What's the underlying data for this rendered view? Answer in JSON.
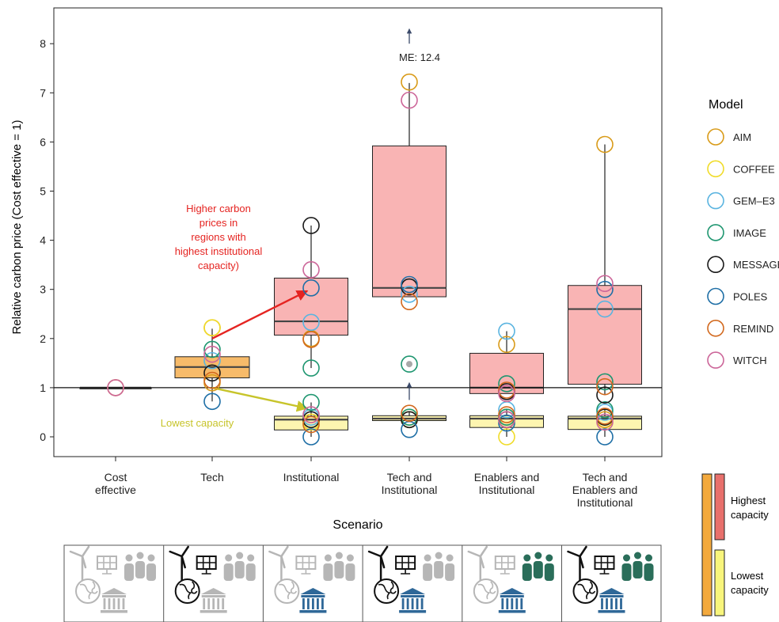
{
  "chart_data": {
    "type": "box",
    "ylabel": "Relative carbon price (Cost effective = 1)",
    "xlabel": "Scenario",
    "ylim": [
      -0.35,
      8.7
    ],
    "yticks": [
      0,
      1,
      2,
      3,
      4,
      5,
      6,
      7,
      8
    ],
    "reference_line": 1,
    "categories": [
      "Cost\neffective",
      "Tech",
      "Institutional",
      "Tech and\nInstitutional",
      "Enablers and\nInstitutional",
      "Tech and\nEnablers and\nInstitutional"
    ],
    "boxes": [
      {
        "category": 0,
        "group": "highest",
        "q1": 1.0,
        "median": 1.0,
        "q3": 1.0,
        "whisker_low": 1.0,
        "whisker_high": 1.0
      },
      {
        "category": 1,
        "group": "combined",
        "q1": 1.2,
        "median": 1.42,
        "q3": 1.63,
        "whisker_low": 0.72,
        "whisker_high": 2.2
      },
      {
        "category": 2,
        "group": "highest",
        "q1": 2.07,
        "median": 2.35,
        "q3": 3.23,
        "whisker_low": 1.4,
        "whisker_high": 4.3
      },
      {
        "category": 2,
        "group": "lowest",
        "q1": 0.14,
        "median": 0.35,
        "q3": 0.42,
        "whisker_low": 0.0,
        "whisker_high": 0.7
      },
      {
        "category": 3,
        "group": "highest",
        "q1": 2.85,
        "median": 3.03,
        "q3": 5.92,
        "whisker_low": 2.85,
        "whisker_high": 7.2
      },
      {
        "category": 3,
        "group": "lowest",
        "q1": 0.33,
        "median": 0.37,
        "q3": 0.43,
        "whisker_low": 0.3,
        "whisker_high": 0.5
      },
      {
        "category": 4,
        "group": "highest",
        "q1": 0.88,
        "median": 1.0,
        "q3": 1.7,
        "whisker_low": 0.88,
        "whisker_high": 2.15
      },
      {
        "category": 4,
        "group": "lowest",
        "q1": 0.19,
        "median": 0.37,
        "q3": 0.43,
        "whisker_low": 0.0,
        "whisker_high": 0.55
      },
      {
        "category": 5,
        "group": "highest",
        "q1": 1.07,
        "median": 2.6,
        "q3": 3.08,
        "whisker_low": 0.85,
        "whisker_high": 5.95
      },
      {
        "category": 5,
        "group": "lowest",
        "q1": 0.15,
        "median": 0.37,
        "q3": 0.42,
        "whisker_low": 0.0,
        "whisker_high": 0.55
      }
    ],
    "series": [
      {
        "name": "AIM",
        "color": "#d99b19",
        "points": [
          [
            0,
            1.0
          ],
          [
            1,
            2.22
          ],
          [
            1,
            1.1
          ],
          [
            2,
            2.0
          ],
          [
            2,
            0.3
          ],
          [
            3,
            7.22
          ],
          [
            3,
            0.35
          ],
          [
            4,
            1.88
          ],
          [
            4,
            0.4
          ],
          [
            5,
            5.95
          ],
          [
            5,
            0.35
          ]
        ]
      },
      {
        "name": "COFFEE",
        "color": "#f0dc2a",
        "points": [
          [
            1,
            2.22
          ],
          [
            2,
            0.3
          ],
          [
            3,
            0.4
          ],
          [
            4,
            0.0
          ],
          [
            5,
            0.4
          ]
        ]
      },
      {
        "name": "GEM–E3",
        "color": "#5ab4e0",
        "points": [
          [
            1,
            1.55
          ],
          [
            2,
            2.33
          ],
          [
            2,
            0.4
          ],
          [
            3,
            2.9
          ],
          [
            4,
            2.15
          ],
          [
            4,
            0.55
          ],
          [
            5,
            2.6
          ],
          [
            5,
            0.5
          ]
        ]
      },
      {
        "name": "IMAGE",
        "color": "#1e9670",
        "points": [
          [
            1,
            1.78
          ],
          [
            2,
            1.4
          ],
          [
            2,
            0.7
          ],
          [
            3,
            1.48
          ],
          [
            3,
            0.4
          ],
          [
            4,
            1.08
          ],
          [
            4,
            0.4
          ],
          [
            5,
            1.12
          ],
          [
            5,
            0.55
          ]
        ]
      },
      {
        "name": "MESSAGE",
        "color": "#1a1a1a",
        "points": [
          [
            1,
            1.3
          ],
          [
            2,
            4.3
          ],
          [
            2,
            0.35
          ],
          [
            3,
            3.05
          ],
          [
            3,
            0.35
          ],
          [
            4,
            0.92
          ],
          [
            4,
            0.35
          ],
          [
            5,
            0.85
          ],
          [
            5,
            0.4
          ]
        ]
      },
      {
        "name": "POLES",
        "color": "#1f6fa6",
        "points": [
          [
            1,
            0.72
          ],
          [
            2,
            3.03
          ],
          [
            2,
            0.0
          ],
          [
            3,
            3.1
          ],
          [
            3,
            0.15
          ],
          [
            4,
            0.28
          ],
          [
            5,
            3.0
          ],
          [
            5,
            0.0
          ]
        ]
      },
      {
        "name": "REMIND",
        "color": "#d2691e",
        "points": [
          [
            1,
            1.15
          ],
          [
            2,
            1.98
          ],
          [
            2,
            0.25
          ],
          [
            3,
            2.75
          ],
          [
            3,
            0.48
          ],
          [
            4,
            0.95
          ],
          [
            4,
            0.45
          ],
          [
            5,
            1.02
          ],
          [
            5,
            0.42
          ]
        ]
      },
      {
        "name": "WITCH",
        "color": "#cc6699",
        "points": [
          [
            0,
            1.0
          ],
          [
            1,
            1.68
          ],
          [
            2,
            3.4
          ],
          [
            2,
            0.45
          ],
          [
            3,
            6.85
          ],
          [
            4,
            0.88
          ],
          [
            4,
            0.35
          ],
          [
            5,
            3.12
          ],
          [
            5,
            0.3
          ]
        ]
      }
    ]
  },
  "legend": {
    "title": "Model",
    "entries": [
      "AIM",
      "COFFEE",
      "GEM–E3",
      "IMAGE",
      "MESSAGE",
      "POLES",
      "REMIND",
      "WITCH"
    ]
  },
  "annotations": {
    "higher": [
      "Higher carbon",
      "prices in",
      "regions with",
      "highest institutional",
      "capacity)"
    ],
    "lowest": "Lowest capacity",
    "me": "ME: 12.4"
  },
  "capacity_legend": {
    "highest": [
      "Highest",
      "capacity"
    ],
    "lowest": [
      "Lowest",
      "capacity"
    ]
  },
  "scenario_icons": [
    {
      "tech": false,
      "enablers": false,
      "institutional": false
    },
    {
      "tech": true,
      "enablers": false,
      "institutional": false
    },
    {
      "tech": false,
      "enablers": false,
      "institutional": true
    },
    {
      "tech": true,
      "enablers": false,
      "institutional": true
    },
    {
      "tech": false,
      "enablers": true,
      "institutional": true
    },
    {
      "tech": true,
      "enablers": true,
      "institutional": true
    }
  ],
  "colors": {
    "highest_fill": "#f9b4b4",
    "lowest_fill": "#fdf5b0",
    "combined_fill": "#f7bb6a",
    "highest_bar": "#e8706c",
    "lowest_bar": "#f8f57c",
    "outer_bar": "#f3a93d",
    "red_annotation": "#e52421",
    "lowest_annotation": "#c7c42a",
    "icon_grey": "#b6b6b6",
    "icon_black": "#111111",
    "icon_blue": "#2f6898",
    "icon_green": "#2a6e5a"
  }
}
